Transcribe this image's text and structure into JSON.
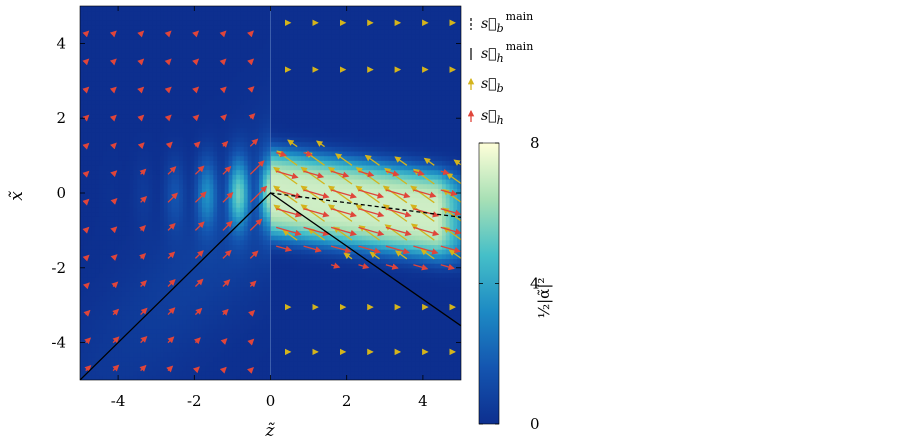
{
  "chart_data": {
    "type": "heatmap",
    "description_free": true,
    "x_axis": {
      "label": "z̃",
      "range": [
        -5,
        5
      ],
      "ticks": [
        -4,
        -2,
        0,
        2,
        4
      ],
      "tick_labels": [
        "-4",
        "-2",
        "0",
        "2",
        "4"
      ]
    },
    "y_axis": {
      "label": "x̃",
      "range": [
        -5,
        5
      ],
      "ticks": [
        -4,
        -2,
        0,
        2,
        4
      ],
      "tick_labels": [
        "-4",
        "-2",
        "0",
        "2",
        "4"
      ]
    },
    "colorbar": {
      "label": "½|α̃|²",
      "range": [
        0,
        8
      ],
      "ticks": [
        0,
        4,
        8
      ],
      "tick_labels": [
        "0",
        "4",
        "8"
      ],
      "colormap": [
        "#0d2f8f",
        "#1455b0",
        "#1d8ac4",
        "#45bfc8",
        "#a8e0b5",
        "#ffffd9"
      ]
    },
    "legend": {
      "position": "top-right",
      "entries": [
        {
          "symbol": "s⃗",
          "sub": "b",
          "sup": "main",
          "style": "dashed-line",
          "color": "#000000"
        },
        {
          "symbol": "s⃗",
          "sub": "h",
          "sup": "main",
          "style": "solid-line",
          "color": "#000000"
        },
        {
          "symbol": "s⃗",
          "sub": "b",
          "sup": "",
          "style": "arrow",
          "color": "#d4b41c"
        },
        {
          "symbol": "s⃗",
          "sub": "h",
          "sup": "",
          "style": "arrow",
          "color": "#e0453a"
        }
      ]
    },
    "lines": [
      {
        "name": "s_b main",
        "style": "dashed",
        "color": "#000000",
        "points": [
          [
            0,
            0
          ],
          [
            5,
            -0.65
          ]
        ]
      },
      {
        "name": "s_h main",
        "style": "solid",
        "color": "#000000",
        "points": [
          [
            -5,
            -5
          ],
          [
            0,
            0
          ],
          [
            5,
            -3.55
          ]
        ]
      }
    ],
    "interface_z": 0,
    "arrow_colors": {
      "s_h": "#e0453a",
      "s_b": "#d4b41c"
    }
  }
}
